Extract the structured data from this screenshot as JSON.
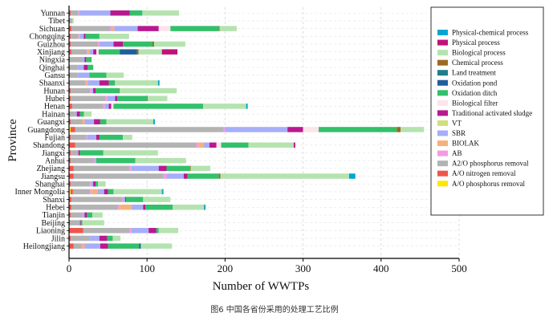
{
  "caption": "图6 中国各省份采用的处理工艺比例",
  "chart_data": {
    "type": "bar",
    "orientation": "horizontal",
    "stacked": true,
    "xlabel": "Number of WWTPs",
    "ylabel": "Province",
    "xlim": [
      0,
      500
    ],
    "xticks": [
      0,
      100,
      200,
      300,
      400,
      500
    ],
    "grid": "dashed vertical and horizontal",
    "legend_position": "right",
    "categories": [
      "Yunnan",
      "Tibet",
      "Sichuan",
      "Chongqing",
      "Guizhou",
      "Xinjiang",
      "Ningxia",
      "Qinghai",
      "Gansu",
      "Shaanxi",
      "Hunan",
      "Hubei",
      "Henan",
      "Hainan",
      "Guangxi",
      "Guangdong",
      "Fujian",
      "Shandong",
      "Jiangxi",
      "Anhui",
      "Zhejiang",
      "Jiangsu",
      "Shanghai",
      "Inner Mongolia",
      "Shanxi",
      "Hebei",
      "Tianjin",
      "Beijing",
      "Liaoning",
      "Jilin",
      "Heilongjiang"
    ],
    "series": [
      {
        "name": "A/O phosphorus removal",
        "color": "#ffe600",
        "values": [
          0,
          0,
          0,
          0,
          0,
          0,
          0,
          0,
          0,
          0,
          0,
          0,
          0,
          0,
          0,
          2,
          0,
          0,
          0,
          0,
          0,
          0,
          0,
          2,
          0,
          0,
          0,
          0,
          0,
          0,
          0
        ]
      },
      {
        "name": "A/O nitrogen removal",
        "color": "#f0554a",
        "values": [
          2,
          1,
          3,
          2,
          2,
          3,
          1,
          1,
          1,
          1,
          2,
          2,
          4,
          1,
          2,
          6,
          2,
          8,
          2,
          2,
          6,
          6,
          2,
          3,
          3,
          3,
          2,
          1,
          18,
          2,
          6
        ]
      },
      {
        "name": "A2/O phosphorus removal",
        "color": "#b3b3b3",
        "values": [
          10,
          3,
          50,
          10,
          35,
          20,
          16,
          10,
          10,
          20,
          25,
          45,
          40,
          7,
          15,
          190,
          20,
          155,
          10,
          30,
          72,
          115,
          25,
          22,
          65,
          60,
          15,
          12,
          60,
          25,
          10
        ]
      },
      {
        "name": "AB",
        "color": "#f59ae2",
        "values": [
          1,
          0,
          2,
          1,
          1,
          1,
          0,
          0,
          0,
          1,
          2,
          2,
          2,
          0,
          0,
          2,
          1,
          3,
          0,
          1,
          2,
          4,
          1,
          2,
          1,
          2,
          1,
          0,
          2,
          0,
          1
        ]
      },
      {
        "name": "BIOLAK",
        "color": "#f7b07a",
        "values": [
          0,
          0,
          3,
          1,
          1,
          2,
          0,
          0,
          0,
          2,
          0,
          0,
          0,
          0,
          3,
          0,
          0,
          6,
          0,
          0,
          0,
          0,
          0,
          8,
          0,
          15,
          0,
          0,
          0,
          0,
          3
        ]
      },
      {
        "name": "SBR",
        "color": "#a6aef8",
        "values": [
          40,
          0,
          30,
          5,
          18,
          5,
          3,
          8,
          15,
          15,
          2,
          10,
          5,
          2,
          12,
          80,
          12,
          8,
          0,
          2,
          35,
          22,
          3,
          8,
          3,
          15,
          2,
          1,
          22,
          12,
          20
        ]
      },
      {
        "name": "VT",
        "color": "#cfe07a",
        "values": [
          0,
          0,
          0,
          0,
          0,
          0,
          0,
          0,
          0,
          0,
          0,
          0,
          0,
          0,
          0,
          0,
          0,
          0,
          0,
          0,
          0,
          0,
          0,
          0,
          0,
          0,
          0,
          0,
          0,
          0,
          0
        ]
      },
      {
        "name": "Traditional activated sludge",
        "color": "#b8198f",
        "values": [
          25,
          0,
          27,
          2,
          12,
          4,
          2,
          5,
          0,
          12,
          3,
          3,
          3,
          4,
          8,
          20,
          4,
          9,
          2,
          0,
          10,
          5,
          3,
          5,
          1,
          3,
          3,
          1,
          10,
          10,
          10
        ]
      },
      {
        "name": "Biological filter",
        "color": "#fde3ea",
        "values": [
          0,
          0,
          15,
          0,
          0,
          3,
          0,
          0,
          0,
          0,
          0,
          0,
          3,
          0,
          0,
          20,
          0,
          6,
          0,
          0,
          0,
          0,
          0,
          0,
          0,
          0,
          0,
          0,
          0,
          0,
          0
        ]
      },
      {
        "name": "Oxidation ditch",
        "color": "#33c06a",
        "values": [
          16,
          0,
          62,
          18,
          38,
          27,
          7,
          7,
          22,
          8,
          30,
          38,
          115,
          5,
          8,
          100,
          30,
          35,
          30,
          50,
          30,
          40,
          3,
          7,
          22,
          35,
          7,
          2,
          3,
          7,
          40
        ]
      },
      {
        "name": "Oxidation pond",
        "color": "#1f5f9c",
        "values": [
          0,
          0,
          0,
          0,
          0,
          22,
          0,
          0,
          0,
          0,
          0,
          0,
          0,
          0,
          0,
          0,
          0,
          0,
          0,
          0,
          0,
          0,
          0,
          0,
          0,
          0,
          0,
          0,
          0,
          0,
          2
        ]
      },
      {
        "name": "Land treatment",
        "color": "#1f7e8c",
        "values": [
          0,
          0,
          0,
          0,
          0,
          0,
          0,
          0,
          0,
          0,
          0,
          0,
          0,
          0,
          0,
          0,
          0,
          0,
          0,
          0,
          0,
          0,
          0,
          0,
          0,
          0,
          0,
          0,
          0,
          0,
          0
        ]
      },
      {
        "name": "Chemical process",
        "color": "#9c6a1e",
        "values": [
          0,
          0,
          1,
          0,
          2,
          2,
          0,
          0,
          0,
          0,
          1,
          1,
          0,
          0,
          0,
          5,
          0,
          0,
          0,
          0,
          1,
          2,
          0,
          0,
          0,
          0,
          0,
          0,
          0,
          0,
          0
        ]
      },
      {
        "name": "Biological process",
        "color": "#b5e3b0",
        "values": [
          47,
          2,
          22,
          38,
          40,
          30,
          0,
          0,
          22,
          55,
          73,
          25,
          55,
          10,
          60,
          30,
          12,
          58,
          70,
          65,
          25,
          165,
          10,
          62,
          35,
          40,
          13,
          28,
          25,
          10,
          40
        ]
      },
      {
        "name": "Physical process",
        "color": "#c0127a",
        "values": [
          0,
          0,
          0,
          0,
          0,
          20,
          0,
          0,
          0,
          0,
          0,
          0,
          0,
          0,
          0,
          0,
          0,
          2,
          0,
          0,
          0,
          0,
          0,
          0,
          0,
          0,
          0,
          0,
          0,
          0,
          0
        ]
      },
      {
        "name": "Physical-chemical process",
        "color": "#00a7cf",
        "values": [
          0,
          0,
          0,
          0,
          0,
          0,
          0,
          0,
          0,
          2,
          0,
          0,
          2,
          0,
          2,
          0,
          0,
          0,
          0,
          0,
          0,
          8,
          0,
          2,
          0,
          2,
          0,
          0,
          0,
          0,
          0
        ]
      }
    ],
    "legend_order": [
      "Physical-chemical process",
      "Physical process",
      "Biological process",
      "Chemical process",
      "Land treatment",
      "Oxidation pond",
      "Oxidation ditch",
      "Biological filter",
      "Traditional activated sludge",
      "VT",
      "SBR",
      "BIOLAK",
      "AB",
      "A2/O phosphorus removal",
      "A/O nitrogen removal",
      "A/O phosphorus removal"
    ]
  }
}
